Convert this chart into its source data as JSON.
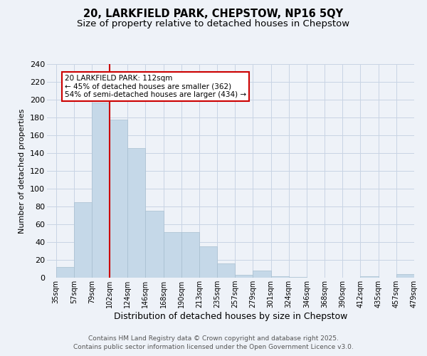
{
  "title_line1": "20, LARKFIELD PARK, CHEPSTOW, NP16 5QY",
  "title_line2": "Size of property relative to detached houses in Chepstow",
  "xlabel": "Distribution of detached houses by size in Chepstow",
  "ylabel": "Number of detached properties",
  "bar_values": [
    12,
    85,
    197,
    178,
    146,
    75,
    51,
    51,
    35,
    16,
    3,
    8,
    2,
    1,
    0,
    0,
    0,
    2,
    0,
    4
  ],
  "categories": [
    "35sqm",
    "57sqm",
    "79sqm",
    "102sqm",
    "124sqm",
    "146sqm",
    "168sqm",
    "190sqm",
    "213sqm",
    "235sqm",
    "257sqm",
    "279sqm",
    "301sqm",
    "324sqm",
    "346sqm",
    "368sqm",
    "390sqm",
    "412sqm",
    "435sqm",
    "457sqm",
    "479sqm"
  ],
  "bar_color": "#c5d8e8",
  "bar_edge_color": "#a8bfd0",
  "vline_x": 3,
  "vline_color": "#cc0000",
  "annotation_text": "20 LARKFIELD PARK: 112sqm\n← 45% of detached houses are smaller (362)\n54% of semi-detached houses are larger (434) →",
  "annotation_box_color": "#ffffff",
  "annotation_box_edge": "#cc0000",
  "ylim": [
    0,
    240
  ],
  "yticks": [
    0,
    20,
    40,
    60,
    80,
    100,
    120,
    140,
    160,
    180,
    200,
    220,
    240
  ],
  "grid_color": "#c8d4e4",
  "background_color": "#eef2f8",
  "footer_text": "Contains HM Land Registry data © Crown copyright and database right 2025.\nContains public sector information licensed under the Open Government Licence v3.0.",
  "title_fontsize": 10.5,
  "subtitle_fontsize": 9.5,
  "xlabel_fontsize": 9,
  "ylabel_fontsize": 8,
  "tick_fontsize": 7,
  "annotation_fontsize": 7.5,
  "footer_fontsize": 6.5
}
